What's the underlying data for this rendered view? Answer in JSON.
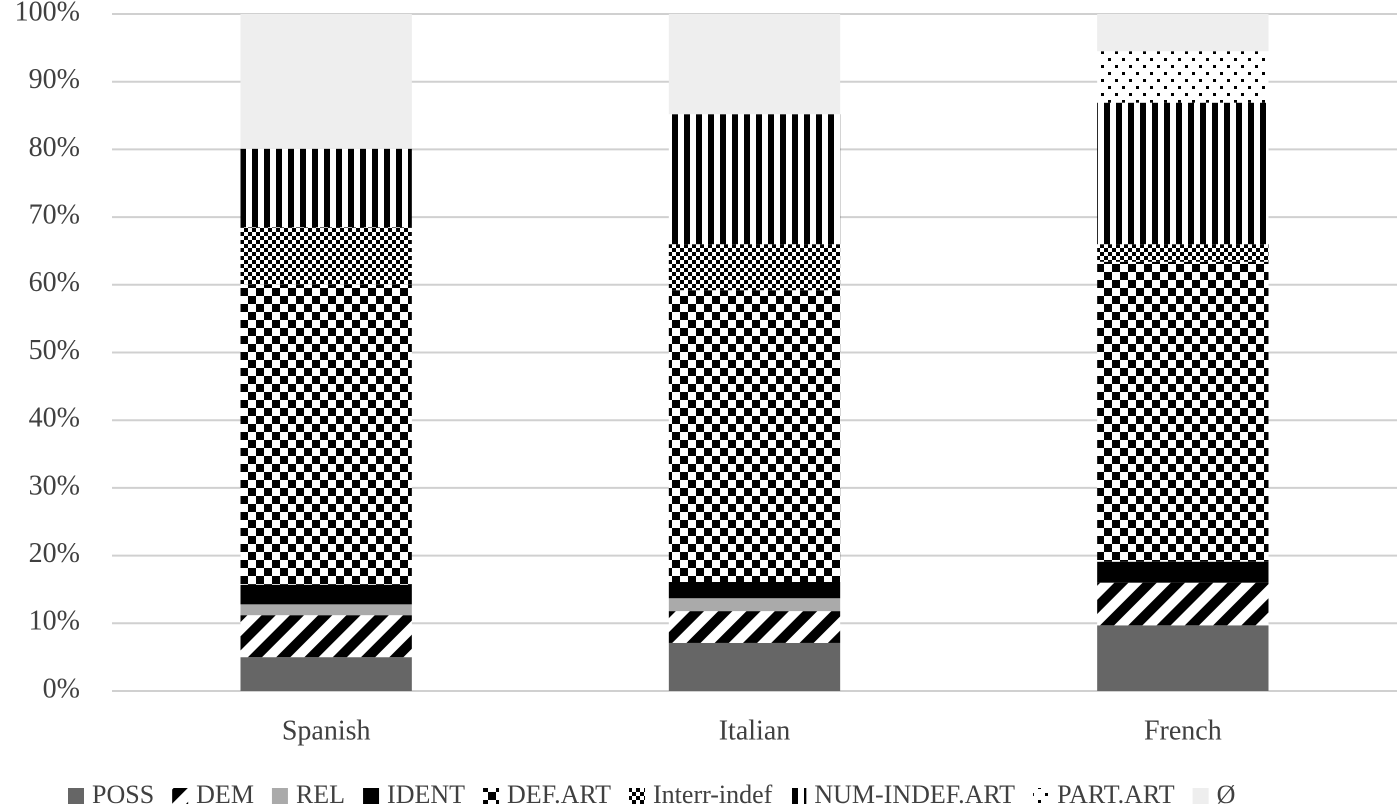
{
  "chart_data": {
    "type": "stacked-bar",
    "categories": [
      "Spanish",
      "Italian",
      "French"
    ],
    "series": [
      {
        "name": "POSS",
        "color": "#666666",
        "values": [
          5.0,
          7.1,
          9.7
        ]
      },
      {
        "name": "DEM",
        "color": "#000000",
        "values": [
          6.2,
          4.7,
          6.3
        ]
      },
      {
        "name": "REL",
        "color": "#aaaaaa",
        "values": [
          1.6,
          1.9,
          0
        ]
      },
      {
        "name": "IDENT",
        "color": "#000000",
        "values": [
          2.9,
          2.4,
          3.1
        ]
      },
      {
        "name": "DEF.ART",
        "color": "#000000",
        "values": [
          44.4,
          43.1,
          44.3
        ]
      },
      {
        "name": "Interr-indef",
        "color": "#000000",
        "values": [
          8.4,
          6.8,
          2.6
        ]
      },
      {
        "name": "NUM-INDEF.ART",
        "color": "#000000",
        "values": [
          11.6,
          19.2,
          20.9
        ]
      },
      {
        "name": "PART.ART",
        "color": "#000000",
        "values": [
          0,
          0,
          7.6
        ]
      },
      {
        "name": "Ø",
        "color": "#eeeeee",
        "values": [
          19.9,
          14.8,
          5.5
        ]
      }
    ],
    "ylim": [
      0,
      100
    ],
    "yticks": [
      {
        "value": 0,
        "label": "0%"
      },
      {
        "value": 10,
        "label": "10%"
      },
      {
        "value": 20,
        "label": "20%"
      },
      {
        "value": 30,
        "label": "30%"
      },
      {
        "value": 40,
        "label": "40%"
      },
      {
        "value": 50,
        "label": "50%"
      },
      {
        "value": 60,
        "label": "60%"
      },
      {
        "value": 70,
        "label": "70%"
      },
      {
        "value": 80,
        "label": "80%"
      },
      {
        "value": 90,
        "label": "90%"
      },
      {
        "value": 100,
        "label": "100%"
      }
    ],
    "grid": true,
    "legend": "bottom"
  }
}
